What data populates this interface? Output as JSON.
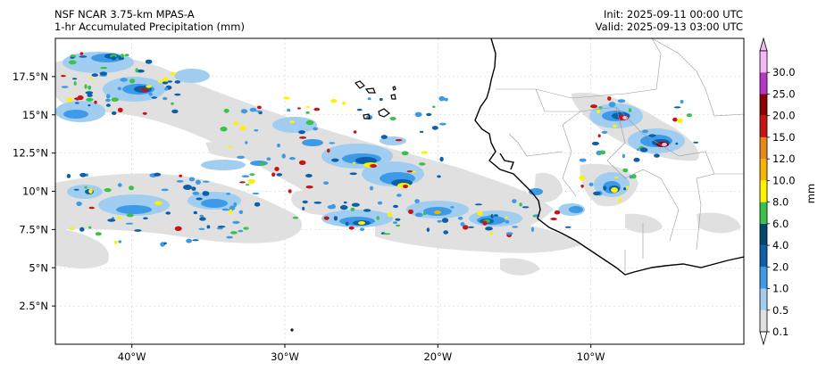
{
  "header": {
    "model": "NSF NCAR 3.75-km MPAS-A",
    "field": "1-hr Accumulated Precipitation (mm)",
    "init": "Init: 2025-09-11 00:00 UTC",
    "valid": "Valid: 2025-09-13 03:00 UTC"
  },
  "map": {
    "lon_range": [
      -45,
      0
    ],
    "lat_range": [
      0,
      20
    ],
    "lon_ticks": [
      {
        "value": -40,
        "label": "40°W"
      },
      {
        "value": -30,
        "label": "30°W"
      },
      {
        "value": -20,
        "label": "20°W"
      },
      {
        "value": -10,
        "label": "10°W"
      }
    ],
    "lat_ticks": [
      {
        "value": 17.5,
        "label": "17.5°N"
      },
      {
        "value": 15,
        "label": "15°N"
      },
      {
        "value": 12.5,
        "label": "12.5°N"
      },
      {
        "value": 10,
        "label": "10°N"
      },
      {
        "value": 7.5,
        "label": "7.5°N"
      },
      {
        "value": 5,
        "label": "5°N"
      },
      {
        "value": 2.5,
        "label": "2.5°N"
      }
    ],
    "gridlines": true
  },
  "colorbar": {
    "unit": "mm",
    "levels": [
      "0.1",
      "0.5",
      "1.0",
      "2.0",
      "4.0",
      "6.0",
      "8.0",
      "10.0",
      "12.0",
      "15.0",
      "20.0",
      "25.0",
      "30.0"
    ],
    "colors": [
      "#e0e0e0",
      "#a0cdf0",
      "#3c9ae6",
      "#0c5fa8",
      "#004870",
      "#39c149",
      "#fef200",
      "#f4b400",
      "#e8871b",
      "#c81414",
      "#8c0000",
      "#b636c8",
      "#f5b8f5"
    ],
    "extend": "both"
  }
}
